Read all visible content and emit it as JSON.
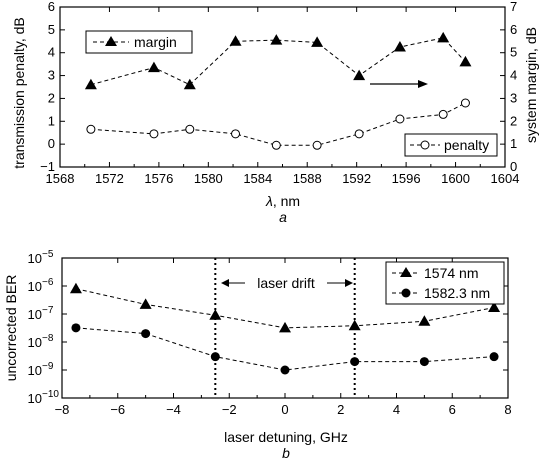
{
  "chart_data": [
    {
      "type": "line",
      "panel_label": "a",
      "xlabel_symbol": "λ",
      "xlabel_unit": ", nm",
      "ylabel_left": "transmission penalty, dB",
      "ylabel_right": "system margin, dB",
      "xlim": [
        1568,
        1604
      ],
      "ylim_left": [
        -1,
        6
      ],
      "ylim_right": [
        0,
        7
      ],
      "x_ticks": [
        "1568",
        "1572",
        "1576",
        "1580",
        "1584",
        "1588",
        "1592",
        "1596",
        "1600",
        "1604"
      ],
      "y_left_ticks": [
        "−1",
        "0",
        "1",
        "2",
        "3",
        "4",
        "5",
        "6"
      ],
      "y_right_ticks": [
        "0",
        "1",
        "2",
        "3",
        "4",
        "5",
        "6",
        "7"
      ],
      "legend_position": "top-left / bottom-right",
      "series": [
        {
          "name": "margin",
          "axis": "right",
          "marker": "filled-triangle",
          "x": [
            1570.5,
            1575.6,
            1578.5,
            1582.2,
            1585.5,
            1588.8,
            1592.2,
            1595.5,
            1599.0,
            1600.8
          ],
          "y": [
            3.6,
            4.35,
            3.6,
            5.5,
            5.55,
            5.45,
            4.0,
            5.25,
            5.65,
            4.6
          ]
        },
        {
          "name": "penalty",
          "axis": "left",
          "marker": "open-circle",
          "x": [
            1570.5,
            1575.6,
            1578.5,
            1582.2,
            1585.5,
            1588.8,
            1592.2,
            1595.5,
            1599.0,
            1600.8
          ],
          "y": [
            0.65,
            0.45,
            0.65,
            0.45,
            -0.05,
            -0.05,
            0.45,
            1.1,
            1.3,
            1.8
          ]
        }
      ]
    },
    {
      "type": "line",
      "panel_label": "b",
      "xlabel": "laser detuning, GHz",
      "ylabel": "uncorrected BER",
      "y_scale": "log",
      "xlim": [
        -8,
        8
      ],
      "ylim_exp": [
        -10,
        -5
      ],
      "x_ticks": [
        "−8",
        "−6",
        "−4",
        "−2",
        "0",
        "2",
        "4",
        "6",
        "8"
      ],
      "y_tick_base": "10",
      "y_tick_exps": [
        "−10",
        "−9",
        "−8",
        "−7",
        "−6",
        "−5"
      ],
      "annotation": "laser drift",
      "drift_range": [
        -2.5,
        2.5
      ],
      "legend_position": "top-right",
      "series": [
        {
          "name": "1574 nm",
          "marker": "filled-triangle",
          "x": [
            -7.5,
            -5,
            -2.5,
            0,
            2.5,
            5,
            7.5
          ],
          "y": [
            8e-07,
            2.2e-07,
            9e-08,
            3.2e-08,
            3.8e-08,
            5.5e-08,
            1.7e-07
          ]
        },
        {
          "name": "1582.3 nm",
          "marker": "filled-circle",
          "x": [
            -7.5,
            -5,
            -2.5,
            0,
            2.5,
            5,
            7.5
          ],
          "y": [
            3.2e-08,
            2e-08,
            3e-09,
            1e-09,
            2e-09,
            2e-09,
            3e-09
          ]
        }
      ]
    }
  ]
}
